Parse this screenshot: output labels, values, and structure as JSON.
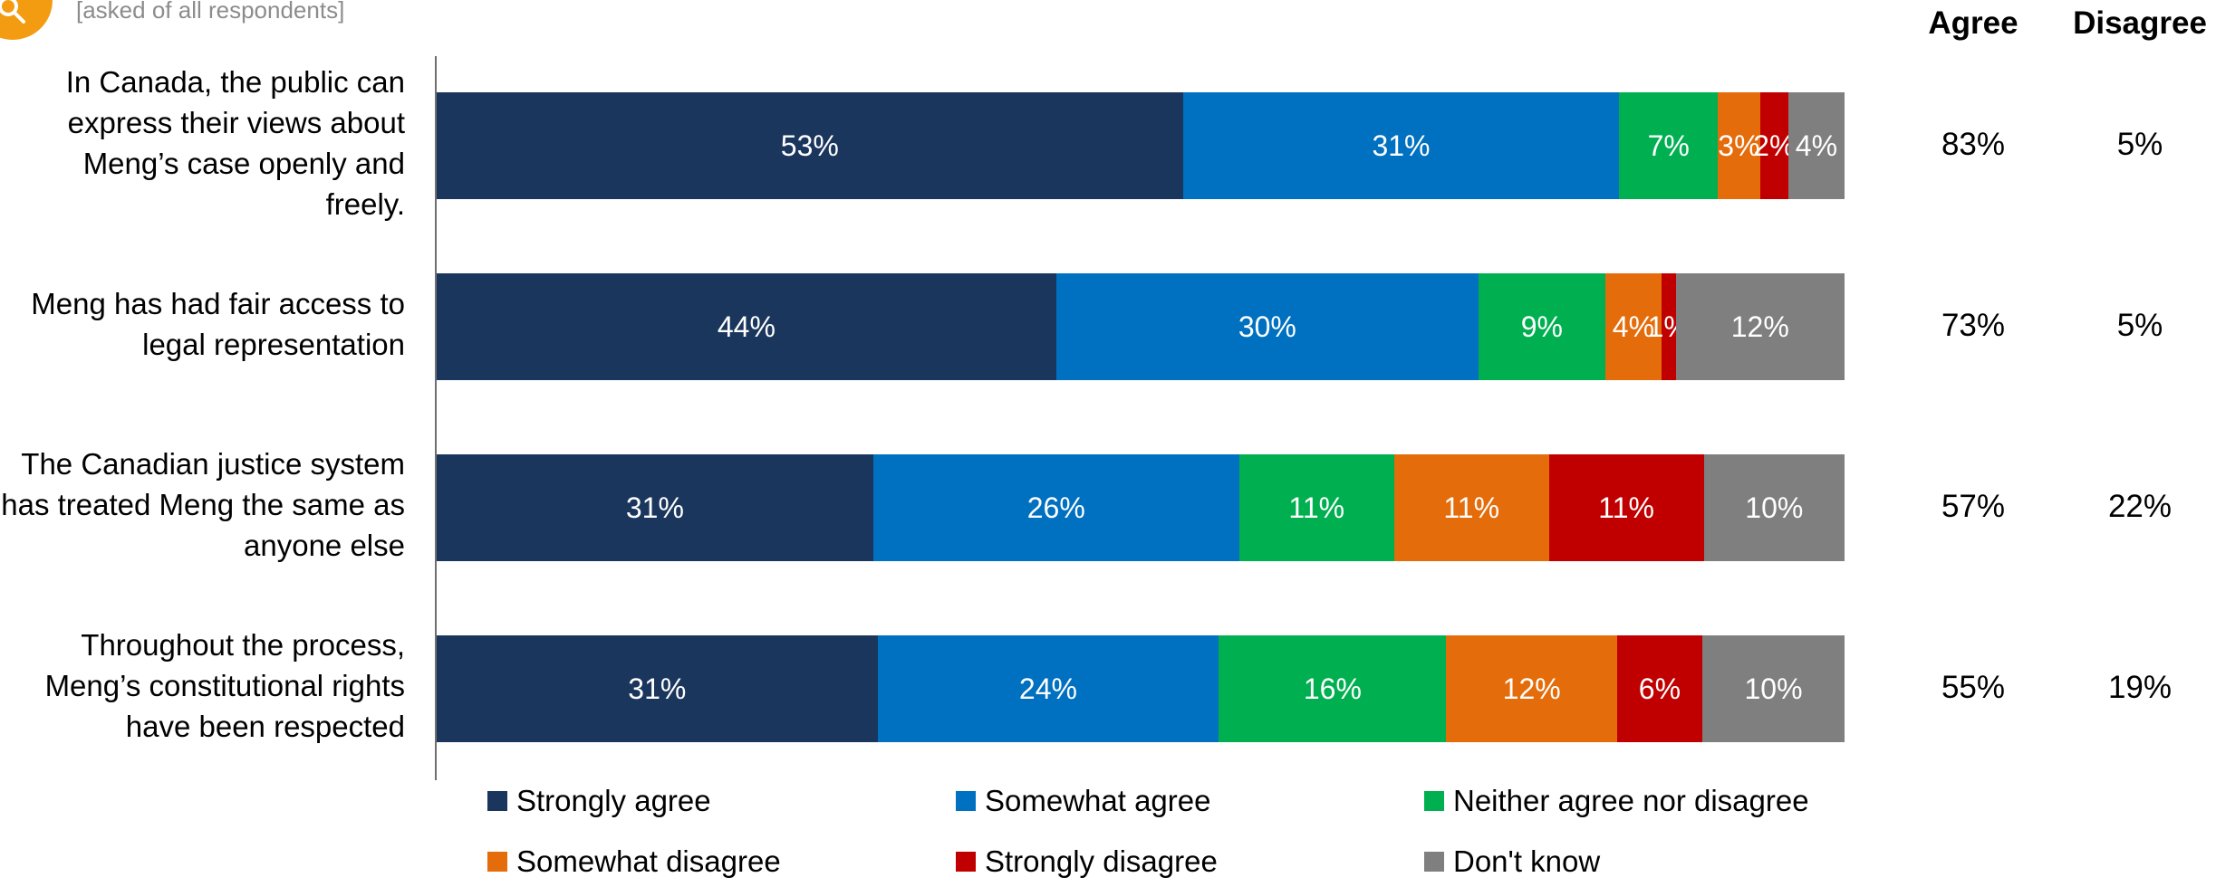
{
  "subtitle": "[asked of all respondents]",
  "columns": {
    "agree": "Agree",
    "disagree": "Disagree"
  },
  "chart_data": {
    "type": "bar",
    "orientation": "horizontal",
    "stacked": true,
    "xlim": [
      0,
      100
    ],
    "legend_position": "bottom",
    "categories": [
      "In Canada, the public can express their views about Meng’s case openly and freely.",
      "Meng has had fair access to legal representation",
      "The Canadian justice system has treated Meng the same as anyone else",
      "Throughout the process, Meng’s constitutional rights have been respected"
    ],
    "series": [
      {
        "name": "Strongly agree",
        "color": "#1b365d",
        "values": [
          53,
          44,
          31,
          31
        ]
      },
      {
        "name": "Somewhat agree",
        "color": "#0070c0",
        "values": [
          31,
          30,
          26,
          24
        ]
      },
      {
        "name": "Neither agree nor disagree",
        "color": "#00b050",
        "values": [
          7,
          9,
          11,
          16
        ]
      },
      {
        "name": "Somewhat disagree",
        "color": "#e46c0a",
        "values": [
          3,
          4,
          11,
          12
        ]
      },
      {
        "name": "Strongly disagree",
        "color": "#c00000",
        "values": [
          2,
          1,
          11,
          6
        ]
      },
      {
        "name": "Don't know",
        "color": "#7f7f7f",
        "values": [
          4,
          12,
          10,
          10
        ]
      }
    ],
    "summary": {
      "agree": [
        "83%",
        "73%",
        "57%",
        "55%"
      ],
      "disagree": [
        "5%",
        "5%",
        "22%",
        "19%"
      ]
    }
  }
}
